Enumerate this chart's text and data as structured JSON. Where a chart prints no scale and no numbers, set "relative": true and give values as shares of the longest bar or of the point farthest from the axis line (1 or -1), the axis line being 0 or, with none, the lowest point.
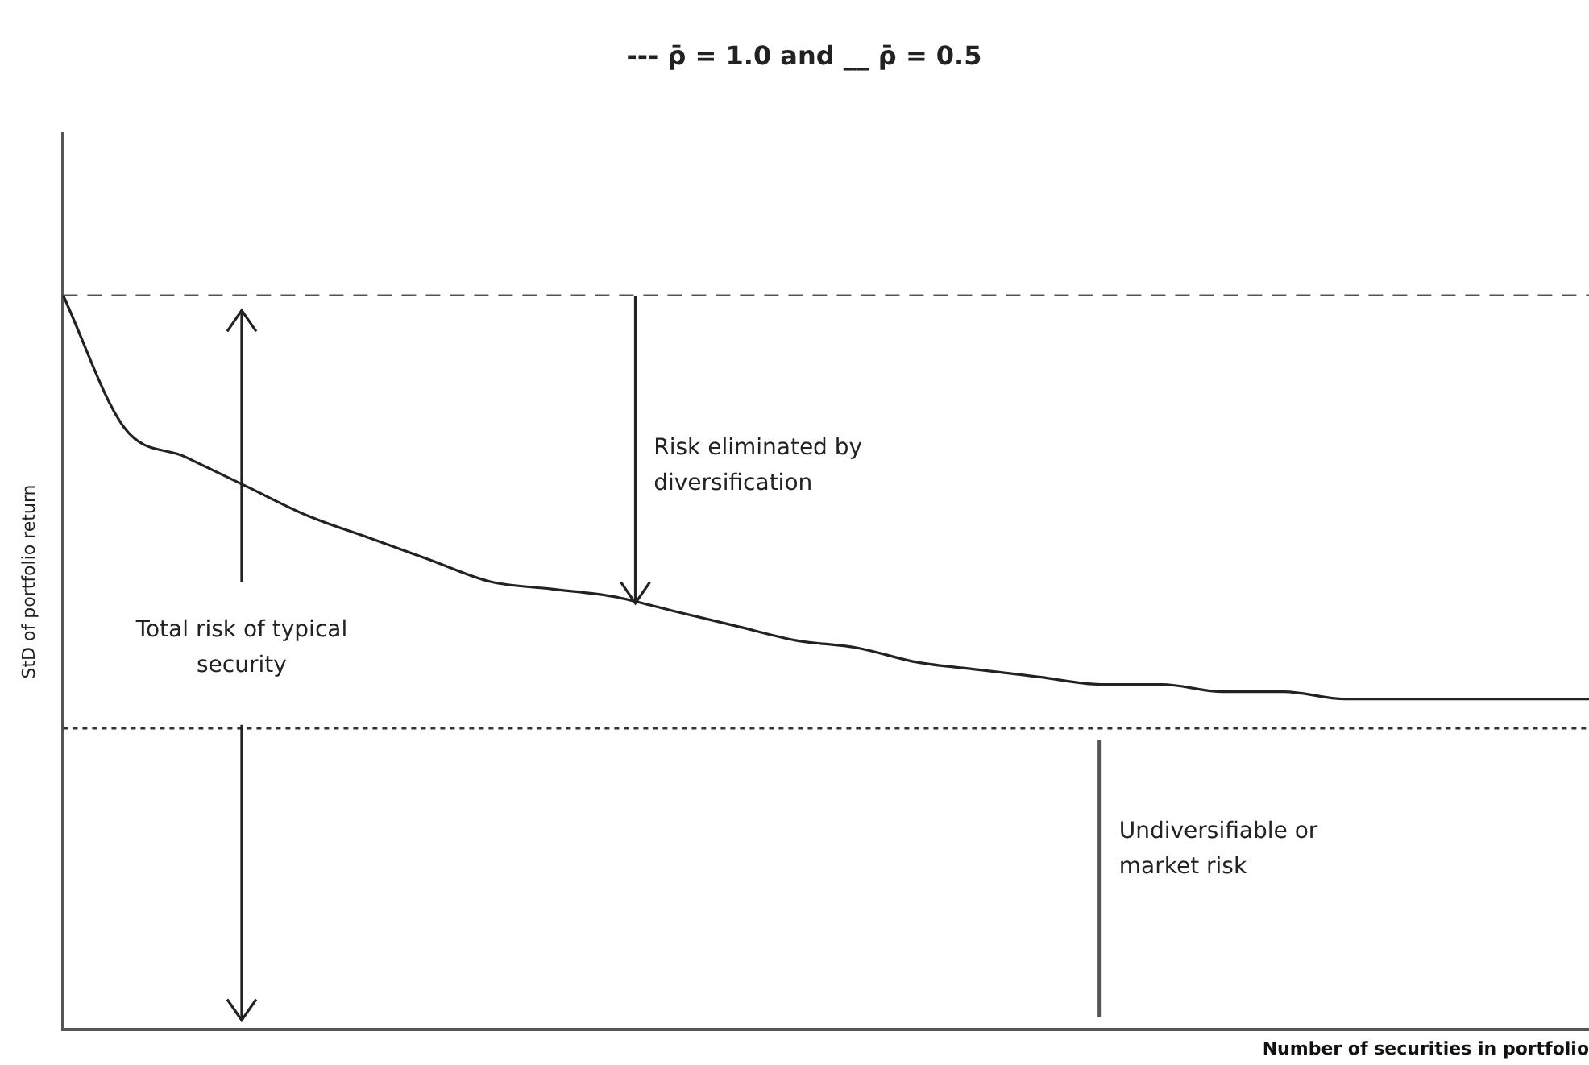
{
  "chart_data": {
    "type": "line",
    "relative": true,
    "title": "--- ρ̄ = 1.0 and __ ρ̄ = 0.5",
    "xlabel": "Number of securities in portfolio",
    "ylabel": "StD of portfolio return",
    "categories": [
      null,
      null,
      null,
      null,
      null,
      null,
      null,
      null,
      null,
      null,
      null,
      null,
      null,
      null,
      null,
      null,
      null,
      null,
      null,
      null,
      null,
      null,
      null,
      null,
      null,
      null
    ],
    "series": [
      {
        "color": "#222222",
        "values": [
          1.0,
          0.82,
          0.78,
          0.74,
          0.7,
          0.67,
          0.64,
          0.61,
          0.6,
          0.59,
          0.57,
          0.55,
          0.53,
          0.52,
          0.5,
          0.49,
          0.48,
          0.47,
          0.47,
          0.46,
          0.46,
          0.45,
          0.45,
          0.45,
          0.45,
          0.45
        ]
      }
    ],
    "ref_lines": [
      {
        "axis": "y",
        "value": 1.0,
        "line_style": "dashed",
        "color": "#555555"
      },
      {
        "axis": "y",
        "value": 0.41,
        "line_style": "dotted",
        "color": "#333333"
      }
    ],
    "annotations": [
      "Risk eliminated by diversification",
      "Total risk of typical security",
      "Undiversifiable or market risk"
    ],
    "grid": false,
    "legend": false
  }
}
